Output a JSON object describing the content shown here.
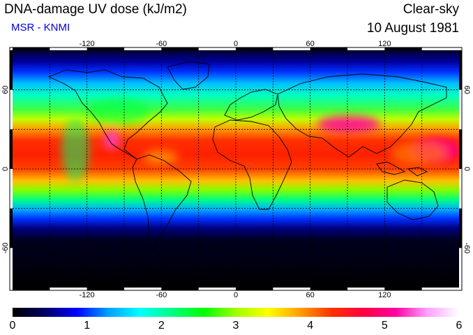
{
  "header": {
    "title": "DNA-damage UV dose (kJ/m2)",
    "source": "MSR - KNMI",
    "condition": "Clear-sky",
    "date": "10 August 1981"
  },
  "map": {
    "lon_ticks": [
      "-120",
      "-60",
      "0",
      "60",
      "120"
    ],
    "lat_ticks_left": [
      "60",
      "0",
      "-60"
    ],
    "lat_ticks_right": [
      "60",
      "0",
      "-60"
    ]
  },
  "colorbar": {
    "labels": [
      "0",
      "1",
      "2",
      "3",
      "4",
      "5",
      "6"
    ],
    "stops": [
      "#000000",
      "#000060",
      "#0000ff",
      "#00a0ff",
      "#00ffff",
      "#00ff80",
      "#00ff00",
      "#a0ff00",
      "#ffff00",
      "#ffa000",
      "#ff3000",
      "#ff0040",
      "#ff00a0",
      "#ffa0ff",
      "#ffffff"
    ]
  },
  "colors": {
    "source_text": "#0000dd",
    "grid": "#000000"
  }
}
